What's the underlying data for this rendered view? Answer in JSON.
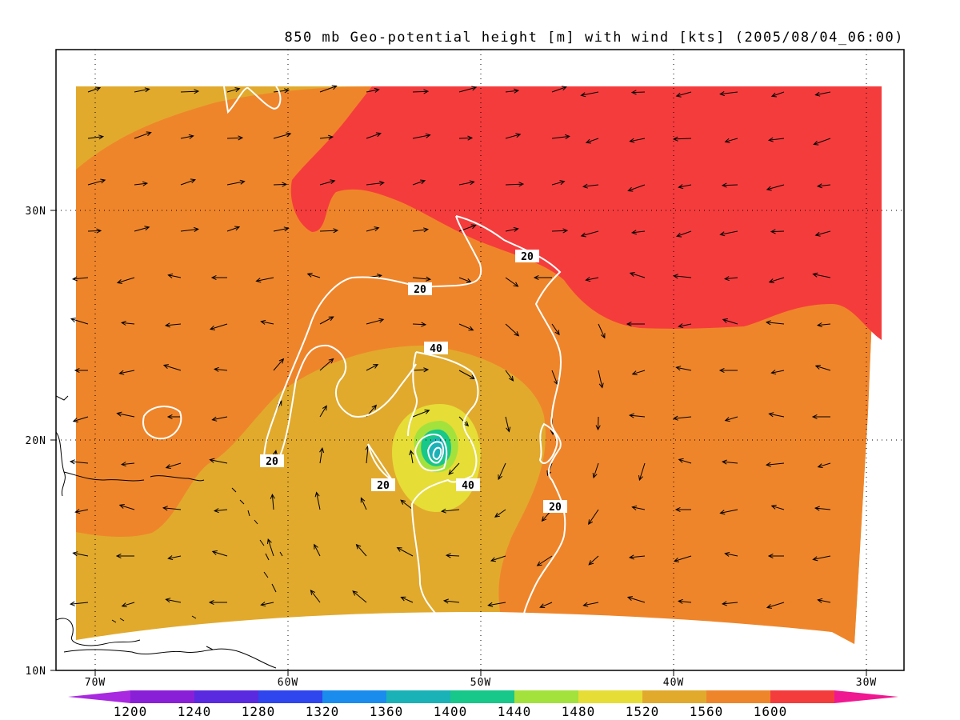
{
  "title": "850 mb Geo-potential height [m] with wind [kts] (2005/08/04_06:00)",
  "map": {
    "lon_range": [
      -72,
      -28
    ],
    "lat_range": [
      10,
      36.5
    ],
    "lon_ticks": [
      "70W",
      "60W",
      "50W",
      "40W",
      "30W"
    ],
    "lat_ticks": [
      "30N",
      "20N",
      "10N"
    ]
  },
  "colors": {
    "c1600": "#f53c3c",
    "c1560": "#ef852a",
    "c1520": "#e1aa2d",
    "c1480": "#e6dd37",
    "c1440": "#a3e23c",
    "c1400": "#18c78a",
    "c1360": "#1ab2b7"
  },
  "colorbar": {
    "labels": [
      "1200",
      "1240",
      "1280",
      "1320",
      "1360",
      "1400",
      "1440",
      "1480",
      "1520",
      "1560",
      "1600"
    ],
    "colors": [
      "#8a1fd8",
      "#5a2ae0",
      "#2f45ee",
      "#1a8cee",
      "#1ab2b7",
      "#18c78a",
      "#a3e23c",
      "#e6dd37",
      "#e1aa2d",
      "#ef852a",
      "#f53c3c"
    ],
    "low_arrow_color": "#a829e0",
    "high_arrow_color": "#f01890"
  },
  "isotach_labels": [
    "20",
    "20",
    "40",
    "20",
    "20",
    "40",
    "20"
  ]
}
